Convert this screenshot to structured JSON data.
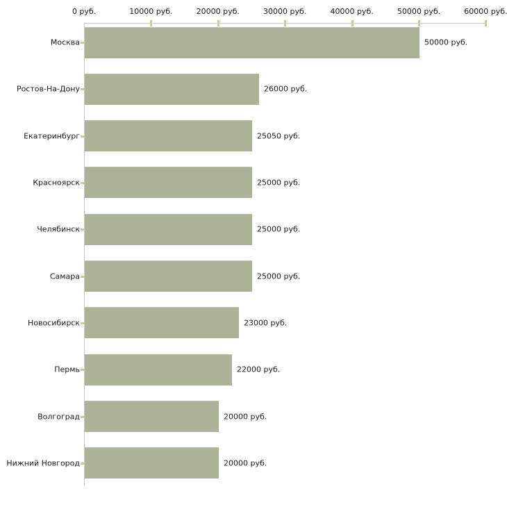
{
  "chart_data": {
    "type": "bar",
    "orientation": "horizontal",
    "title": "",
    "unit": "руб.",
    "categories": [
      "Москва",
      "Ростов-На-Дону",
      "Екатеринбург",
      "Красноярск",
      "Челябинск",
      "Самара",
      "Новосибирск",
      "Пермь",
      "Волгоград",
      "Нижний Новгород"
    ],
    "values": [
      50000,
      26000,
      25050,
      25000,
      25000,
      25000,
      23000,
      22000,
      20000,
      20000
    ],
    "value_labels": [
      "50000 руб.",
      "26000 руб.",
      "25050 руб.",
      "25000 руб.",
      "25000 руб.",
      "25000 руб.",
      "23000 руб.",
      "22000 руб.",
      "20000 руб.",
      "20000 руб."
    ],
    "x_axis": {
      "position": "top",
      "min": 0,
      "max": 60000,
      "tick_interval": 10000,
      "tick_labels": [
        "0 руб.",
        "10000 руб.",
        "20000 руб.",
        "30000 руб.",
        "40000 руб.",
        "50000 руб.",
        "60000 руб."
      ]
    },
    "grid": false,
    "legend": false,
    "colors": {
      "bar": "#aab298",
      "bar_highlight": "#bcc3ac",
      "axis": "#c9c9c9",
      "tick": "#cccc99",
      "text": "#1a1a1a",
      "background": "#ffffff"
    }
  }
}
